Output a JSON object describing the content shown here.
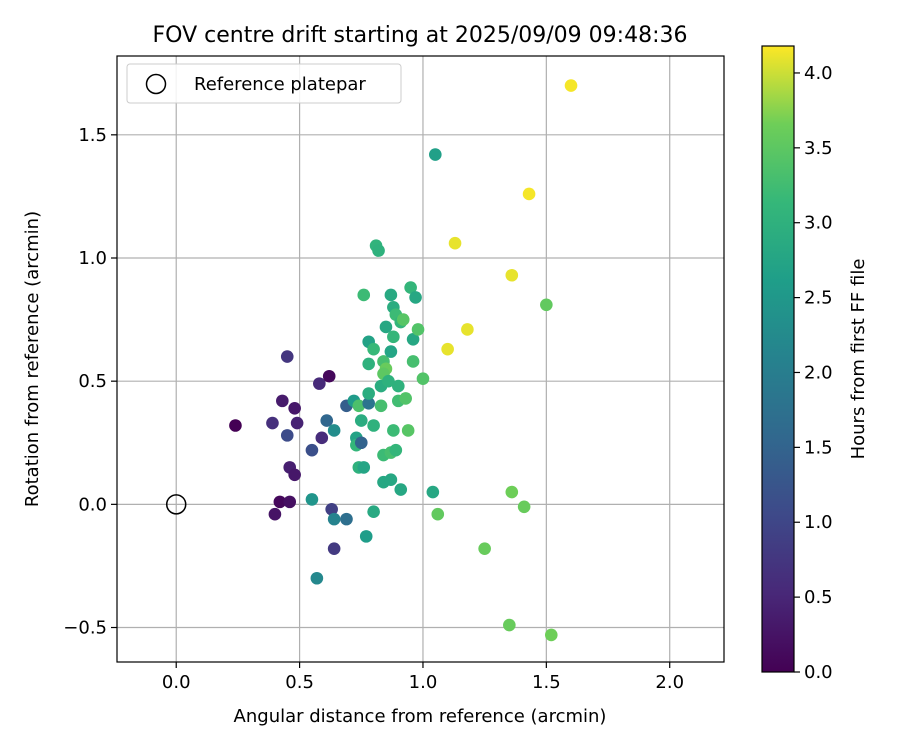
{
  "chart_data": {
    "type": "scatter",
    "title": "FOV centre drift starting at 2025/09/09 09:48:36",
    "xlabel": "Angular distance from reference (arcmin)",
    "ylabel": "Rotation from reference (arcmin)",
    "xlim": [
      -0.24,
      2.22
    ],
    "ylim": [
      -0.64,
      1.82
    ],
    "xticks": [
      0.0,
      0.5,
      1.0,
      1.5,
      2.0
    ],
    "xtick_labels": [
      "0.0",
      "0.5",
      "1.0",
      "1.5",
      "2.0"
    ],
    "yticks": [
      -0.5,
      0.0,
      0.5,
      1.0,
      1.5
    ],
    "ytick_labels": [
      "−0.5",
      "0.0",
      "0.5",
      "1.0",
      "1.5"
    ],
    "grid": true,
    "legend": {
      "placement": "top-left",
      "entries": [
        {
          "label": "Reference platepar",
          "marker": "open-circle"
        }
      ]
    },
    "reference_point": {
      "x": 0.0,
      "y": 0.0
    },
    "colorbar": {
      "label": "Hours from first FF file",
      "colormap": "viridis",
      "range": [
        0.0,
        4.18
      ],
      "ticks": [
        0.0,
        0.5,
        1.0,
        1.5,
        2.0,
        2.5,
        3.0,
        3.5,
        4.0
      ],
      "tick_labels": [
        "0.0",
        "0.5",
        "1.0",
        "1.5",
        "2.0",
        "2.5",
        "3.0",
        "3.5",
        "4.0"
      ]
    },
    "points": [
      {
        "x": 0.24,
        "y": 0.32,
        "c": 0.0
      },
      {
        "x": 0.4,
        "y": -0.04,
        "c": 0.25
      },
      {
        "x": 0.42,
        "y": 0.01,
        "c": 0.1
      },
      {
        "x": 0.46,
        "y": 0.01,
        "c": 0.2
      },
      {
        "x": 0.46,
        "y": 0.15,
        "c": 0.4
      },
      {
        "x": 0.48,
        "y": 0.12,
        "c": 0.3
      },
      {
        "x": 0.43,
        "y": 0.42,
        "c": 0.35
      },
      {
        "x": 0.48,
        "y": 0.39,
        "c": 0.3
      },
      {
        "x": 0.39,
        "y": 0.33,
        "c": 0.65
      },
      {
        "x": 0.49,
        "y": 0.33,
        "c": 0.45
      },
      {
        "x": 0.45,
        "y": 0.28,
        "c": 1.1
      },
      {
        "x": 0.45,
        "y": 0.6,
        "c": 0.75
      },
      {
        "x": 0.58,
        "y": 0.49,
        "c": 0.55
      },
      {
        "x": 0.62,
        "y": 0.52,
        "c": 0.1
      },
      {
        "x": 0.59,
        "y": 0.27,
        "c": 0.6
      },
      {
        "x": 0.61,
        "y": 0.34,
        "c": 1.55
      },
      {
        "x": 0.55,
        "y": 0.22,
        "c": 1.15
      },
      {
        "x": 0.64,
        "y": 0.3,
        "c": 2.3
      },
      {
        "x": 0.55,
        "y": 0.02,
        "c": 2.45
      },
      {
        "x": 0.63,
        "y": -0.02,
        "c": 0.9
      },
      {
        "x": 0.64,
        "y": -0.06,
        "c": 2.1
      },
      {
        "x": 0.69,
        "y": -0.06,
        "c": 1.7
      },
      {
        "x": 0.64,
        "y": -0.18,
        "c": 0.8
      },
      {
        "x": 0.57,
        "y": -0.3,
        "c": 2.2
      },
      {
        "x": 0.69,
        "y": 0.4,
        "c": 1.4
      },
      {
        "x": 0.72,
        "y": 0.42,
        "c": 2.55
      },
      {
        "x": 0.73,
        "y": 0.27,
        "c": 2.7
      },
      {
        "x": 0.74,
        "y": 0.4,
        "c": 3.35
      },
      {
        "x": 0.75,
        "y": 0.34,
        "c": 2.9
      },
      {
        "x": 0.73,
        "y": 0.24,
        "c": 3.1
      },
      {
        "x": 0.75,
        "y": 0.25,
        "c": 1.5
      },
      {
        "x": 0.74,
        "y": 0.15,
        "c": 3.0
      },
      {
        "x": 0.76,
        "y": 0.15,
        "c": 2.75
      },
      {
        "x": 0.78,
        "y": 0.41,
        "c": 1.8
      },
      {
        "x": 0.78,
        "y": 0.45,
        "c": 2.9
      },
      {
        "x": 0.78,
        "y": 0.57,
        "c": 3.0
      },
      {
        "x": 0.78,
        "y": 0.66,
        "c": 2.7
      },
      {
        "x": 0.76,
        "y": 0.85,
        "c": 3.2
      },
      {
        "x": 0.81,
        "y": 1.05,
        "c": 3.05
      },
      {
        "x": 0.82,
        "y": 1.03,
        "c": 3.0
      },
      {
        "x": 0.8,
        "y": 0.63,
        "c": 3.15
      },
      {
        "x": 0.8,
        "y": 0.32,
        "c": 3.0
      },
      {
        "x": 0.8,
        "y": -0.03,
        "c": 2.85
      },
      {
        "x": 0.77,
        "y": -0.13,
        "c": 2.6
      },
      {
        "x": 0.83,
        "y": 0.4,
        "c": 3.3
      },
      {
        "x": 0.83,
        "y": 0.48,
        "c": 2.9
      },
      {
        "x": 0.84,
        "y": 0.58,
        "c": 3.3
      },
      {
        "x": 0.85,
        "y": 0.55,
        "c": 3.6
      },
      {
        "x": 0.84,
        "y": 0.53,
        "c": 3.5
      },
      {
        "x": 0.84,
        "y": 0.2,
        "c": 3.2
      },
      {
        "x": 0.84,
        "y": 0.09,
        "c": 2.8
      },
      {
        "x": 0.85,
        "y": 0.72,
        "c": 2.8
      },
      {
        "x": 0.86,
        "y": 0.5,
        "c": 3.0
      },
      {
        "x": 0.87,
        "y": 0.62,
        "c": 2.75
      },
      {
        "x": 0.87,
        "y": 0.85,
        "c": 2.85
      },
      {
        "x": 0.88,
        "y": 0.8,
        "c": 2.9
      },
      {
        "x": 0.87,
        "y": 0.1,
        "c": 2.8
      },
      {
        "x": 0.87,
        "y": 0.21,
        "c": 3.3
      },
      {
        "x": 0.88,
        "y": 0.3,
        "c": 3.2
      },
      {
        "x": 0.88,
        "y": 0.68,
        "c": 3.1
      },
      {
        "x": 0.89,
        "y": 0.77,
        "c": 3.2
      },
      {
        "x": 0.89,
        "y": 0.22,
        "c": 3.1
      },
      {
        "x": 0.9,
        "y": 0.42,
        "c": 3.25
      },
      {
        "x": 0.9,
        "y": 0.48,
        "c": 3.0
      },
      {
        "x": 0.91,
        "y": 0.74,
        "c": 3.1
      },
      {
        "x": 0.91,
        "y": 0.06,
        "c": 2.8
      },
      {
        "x": 0.92,
        "y": 0.75,
        "c": 3.45
      },
      {
        "x": 0.93,
        "y": 0.43,
        "c": 3.4
      },
      {
        "x": 0.94,
        "y": 0.3,
        "c": 3.45
      },
      {
        "x": 0.95,
        "y": 0.88,
        "c": 3.1
      },
      {
        "x": 0.96,
        "y": 0.67,
        "c": 2.8
      },
      {
        "x": 0.96,
        "y": 0.58,
        "c": 3.3
      },
      {
        "x": 0.97,
        "y": 0.84,
        "c": 2.8
      },
      {
        "x": 0.98,
        "y": 0.71,
        "c": 3.4
      },
      {
        "x": 1.0,
        "y": 0.51,
        "c": 3.4
      },
      {
        "x": 1.05,
        "y": 1.42,
        "c": 2.65
      },
      {
        "x": 1.04,
        "y": 0.05,
        "c": 2.8
      },
      {
        "x": 1.06,
        "y": -0.04,
        "c": 3.55
      },
      {
        "x": 1.1,
        "y": 0.63,
        "c": 4.1
      },
      {
        "x": 1.13,
        "y": 1.06,
        "c": 4.1
      },
      {
        "x": 1.18,
        "y": 0.71,
        "c": 4.1
      },
      {
        "x": 1.25,
        "y": -0.18,
        "c": 3.6
      },
      {
        "x": 1.36,
        "y": 0.93,
        "c": 4.1
      },
      {
        "x": 1.36,
        "y": 0.05,
        "c": 3.65
      },
      {
        "x": 1.35,
        "y": -0.49,
        "c": 3.6
      },
      {
        "x": 1.41,
        "y": -0.01,
        "c": 3.6
      },
      {
        "x": 1.43,
        "y": 1.26,
        "c": 4.15
      },
      {
        "x": 1.5,
        "y": 0.81,
        "c": 3.55
      },
      {
        "x": 1.52,
        "y": -0.53,
        "c": 3.65
      },
      {
        "x": 1.6,
        "y": 1.7,
        "c": 4.15
      }
    ]
  }
}
